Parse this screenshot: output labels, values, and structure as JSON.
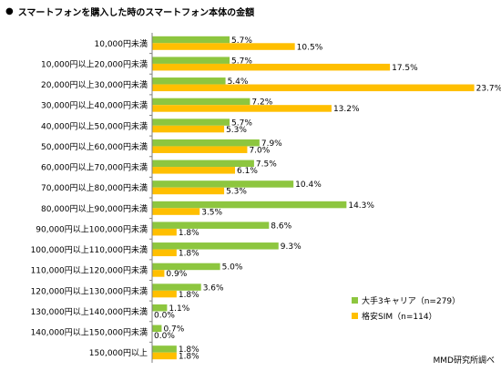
{
  "title": "スマートフォンを購入した時のスマートフォン本体の金額",
  "source_note": "MMD研究所調べ",
  "colors": {
    "carrier": "#8dc63f",
    "sim": "#ffbf00",
    "axis": "#7f7f7f"
  },
  "chart_data": {
    "type": "bar",
    "orientation": "horizontal",
    "title": "スマートフォンを購入した時のスマートフォン本体の金額",
    "categories": [
      "10,000円未満",
      "10,000円以上20,000円未満",
      "20,000円以上30,000円未満",
      "30,000円以上40,000円未満",
      "40,000円以上50,000円未満",
      "50,000円以上60,000円未満",
      "60,000円以上70,000円未満",
      "70,000円以上80,000円未満",
      "80,000円以上90,000円未満",
      "90,000円以上100,000円未満",
      "100,000円以上110,000円未満",
      "110,000円以上120,000円未満",
      "120,000円以上130,000円未満",
      "130,000円以上140,000円未満",
      "140,000円以上150,000円未満",
      "150,000円以上"
    ],
    "series": [
      {
        "name": "大手3キャリア（n=279）",
        "values": [
          5.7,
          5.7,
          5.4,
          7.2,
          5.7,
          7.9,
          7.5,
          10.4,
          14.3,
          8.6,
          9.3,
          5.0,
          3.6,
          1.1,
          0.7,
          1.8
        ]
      },
      {
        "name": "格安SIM（n=114）",
        "values": [
          10.5,
          17.5,
          23.7,
          13.2,
          5.3,
          7.0,
          6.1,
          5.3,
          3.5,
          1.8,
          1.8,
          0.9,
          1.8,
          0.0,
          0.0,
          1.8
        ]
      }
    ],
    "data_label_suffix": "%",
    "xlim": [
      0,
      25
    ],
    "grid": false,
    "legend_position": "bottom-right"
  }
}
